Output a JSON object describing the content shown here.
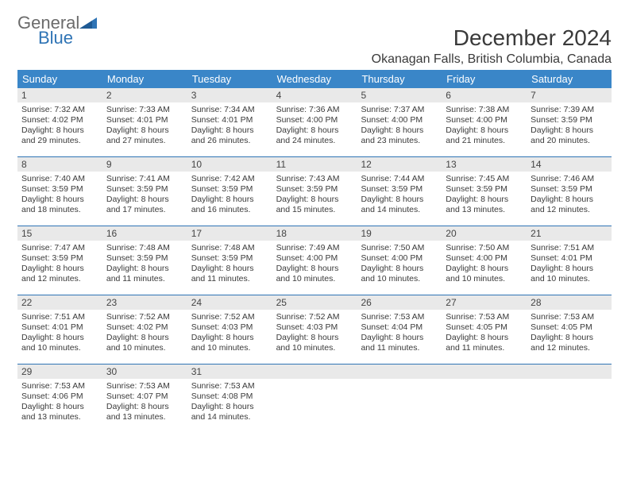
{
  "brand": {
    "general": "General",
    "blue": "Blue"
  },
  "title": "December 2024",
  "location": "Okanagan Falls, British Columbia, Canada",
  "colors": {
    "header_bar": "#3a86c8",
    "week_divider": "#2f74b5",
    "daynum_bg": "#e9e9e9",
    "text": "#3a3a3a",
    "logo_gray": "#6b6b6b",
    "logo_blue": "#2f74b5"
  },
  "dow": [
    "Sunday",
    "Monday",
    "Tuesday",
    "Wednesday",
    "Thursday",
    "Friday",
    "Saturday"
  ],
  "weeks": [
    [
      {
        "n": "1",
        "sr": "7:32 AM",
        "ss": "4:02 PM",
        "dl": "8 hours and 29 minutes."
      },
      {
        "n": "2",
        "sr": "7:33 AM",
        "ss": "4:01 PM",
        "dl": "8 hours and 27 minutes."
      },
      {
        "n": "3",
        "sr": "7:34 AM",
        "ss": "4:01 PM",
        "dl": "8 hours and 26 minutes."
      },
      {
        "n": "4",
        "sr": "7:36 AM",
        "ss": "4:00 PM",
        "dl": "8 hours and 24 minutes."
      },
      {
        "n": "5",
        "sr": "7:37 AM",
        "ss": "4:00 PM",
        "dl": "8 hours and 23 minutes."
      },
      {
        "n": "6",
        "sr": "7:38 AM",
        "ss": "4:00 PM",
        "dl": "8 hours and 21 minutes."
      },
      {
        "n": "7",
        "sr": "7:39 AM",
        "ss": "3:59 PM",
        "dl": "8 hours and 20 minutes."
      }
    ],
    [
      {
        "n": "8",
        "sr": "7:40 AM",
        "ss": "3:59 PM",
        "dl": "8 hours and 18 minutes."
      },
      {
        "n": "9",
        "sr": "7:41 AM",
        "ss": "3:59 PM",
        "dl": "8 hours and 17 minutes."
      },
      {
        "n": "10",
        "sr": "7:42 AM",
        "ss": "3:59 PM",
        "dl": "8 hours and 16 minutes."
      },
      {
        "n": "11",
        "sr": "7:43 AM",
        "ss": "3:59 PM",
        "dl": "8 hours and 15 minutes."
      },
      {
        "n": "12",
        "sr": "7:44 AM",
        "ss": "3:59 PM",
        "dl": "8 hours and 14 minutes."
      },
      {
        "n": "13",
        "sr": "7:45 AM",
        "ss": "3:59 PM",
        "dl": "8 hours and 13 minutes."
      },
      {
        "n": "14",
        "sr": "7:46 AM",
        "ss": "3:59 PM",
        "dl": "8 hours and 12 minutes."
      }
    ],
    [
      {
        "n": "15",
        "sr": "7:47 AM",
        "ss": "3:59 PM",
        "dl": "8 hours and 12 minutes."
      },
      {
        "n": "16",
        "sr": "7:48 AM",
        "ss": "3:59 PM",
        "dl": "8 hours and 11 minutes."
      },
      {
        "n": "17",
        "sr": "7:48 AM",
        "ss": "3:59 PM",
        "dl": "8 hours and 11 minutes."
      },
      {
        "n": "18",
        "sr": "7:49 AM",
        "ss": "4:00 PM",
        "dl": "8 hours and 10 minutes."
      },
      {
        "n": "19",
        "sr": "7:50 AM",
        "ss": "4:00 PM",
        "dl": "8 hours and 10 minutes."
      },
      {
        "n": "20",
        "sr": "7:50 AM",
        "ss": "4:00 PM",
        "dl": "8 hours and 10 minutes."
      },
      {
        "n": "21",
        "sr": "7:51 AM",
        "ss": "4:01 PM",
        "dl": "8 hours and 10 minutes."
      }
    ],
    [
      {
        "n": "22",
        "sr": "7:51 AM",
        "ss": "4:01 PM",
        "dl": "8 hours and 10 minutes."
      },
      {
        "n": "23",
        "sr": "7:52 AM",
        "ss": "4:02 PM",
        "dl": "8 hours and 10 minutes."
      },
      {
        "n": "24",
        "sr": "7:52 AM",
        "ss": "4:03 PM",
        "dl": "8 hours and 10 minutes."
      },
      {
        "n": "25",
        "sr": "7:52 AM",
        "ss": "4:03 PM",
        "dl": "8 hours and 10 minutes."
      },
      {
        "n": "26",
        "sr": "7:53 AM",
        "ss": "4:04 PM",
        "dl": "8 hours and 11 minutes."
      },
      {
        "n": "27",
        "sr": "7:53 AM",
        "ss": "4:05 PM",
        "dl": "8 hours and 11 minutes."
      },
      {
        "n": "28",
        "sr": "7:53 AM",
        "ss": "4:05 PM",
        "dl": "8 hours and 12 minutes."
      }
    ],
    [
      {
        "n": "29",
        "sr": "7:53 AM",
        "ss": "4:06 PM",
        "dl": "8 hours and 13 minutes."
      },
      {
        "n": "30",
        "sr": "7:53 AM",
        "ss": "4:07 PM",
        "dl": "8 hours and 13 minutes."
      },
      {
        "n": "31",
        "sr": "7:53 AM",
        "ss": "4:08 PM",
        "dl": "8 hours and 14 minutes."
      },
      null,
      null,
      null,
      null
    ]
  ],
  "labels": {
    "sunrise": "Sunrise: ",
    "sunset": "Sunset: ",
    "daylight": "Daylight: "
  }
}
